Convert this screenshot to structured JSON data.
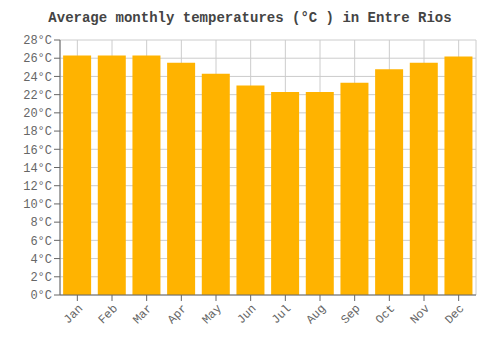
{
  "chart_data": {
    "type": "bar",
    "title": "Average monthly temperatures (°C ) in Entre Rios",
    "categories": [
      "Jan",
      "Feb",
      "Mar",
      "Apr",
      "May",
      "Jun",
      "Jul",
      "Aug",
      "Sep",
      "Oct",
      "Nov",
      "Dec"
    ],
    "values": [
      26.3,
      26.3,
      26.3,
      25.5,
      24.3,
      23.0,
      22.3,
      22.3,
      23.3,
      24.8,
      25.5,
      26.2
    ],
    "color": "#FFB300",
    "ylim": [
      0,
      28
    ],
    "yticks": [
      {
        "value": 0,
        "label": "0°C"
      },
      {
        "value": 2,
        "label": "2°C"
      },
      {
        "value": 4,
        "label": "4°C"
      },
      {
        "value": 6,
        "label": "6°C"
      },
      {
        "value": 8,
        "label": "8°C"
      },
      {
        "value": 10,
        "label": "10°C"
      },
      {
        "value": 12,
        "label": "12°C"
      },
      {
        "value": 14,
        "label": "14°C"
      },
      {
        "value": 16,
        "label": "16°C"
      },
      {
        "value": 18,
        "label": "18°C"
      },
      {
        "value": 20,
        "label": "20°C"
      },
      {
        "value": 22,
        "label": "22°C"
      },
      {
        "value": 24,
        "label": "24°C"
      },
      {
        "value": 26,
        "label": "26°C"
      },
      {
        "value": 28,
        "label": "28°C"
      }
    ],
    "grid": true
  }
}
